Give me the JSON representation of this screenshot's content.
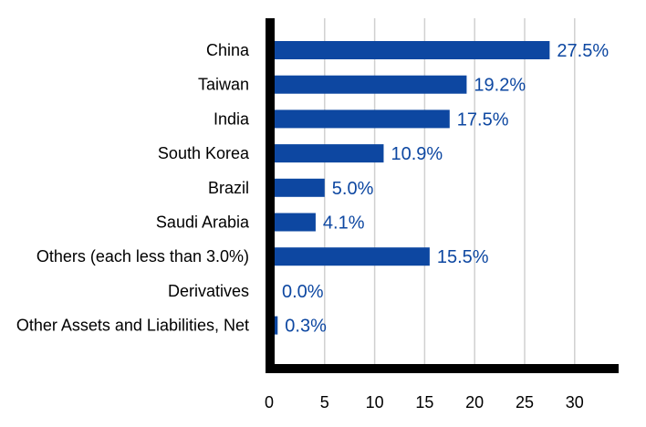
{
  "chart_data": {
    "type": "bar",
    "orientation": "horizontal",
    "title": "",
    "xlabel": "",
    "ylabel": "",
    "categories": [
      "China",
      "Taiwan",
      "India",
      "South Korea",
      "Brazil",
      "Saudi Arabia",
      "Others (each less than 3.0%)",
      "Derivatives",
      "Other Assets and Liabilities, Net"
    ],
    "values": [
      27.5,
      19.2,
      17.5,
      10.9,
      5.0,
      4.1,
      15.5,
      0.0,
      0.3
    ],
    "data_labels": [
      "27.5%",
      "19.2%",
      "17.5%",
      "10.9%",
      "5.0%",
      "4.1%",
      "15.5%",
      "0.0%",
      "0.3%"
    ],
    "x_ticks": [
      0,
      5,
      10,
      15,
      20,
      25,
      30
    ],
    "xlim": [
      0,
      35
    ],
    "grid": true,
    "legend": "none",
    "colors": {
      "bar": "#0d47a1",
      "label": "#0d47a1",
      "axis": "#000000",
      "grid": "#d0d0d0"
    }
  }
}
